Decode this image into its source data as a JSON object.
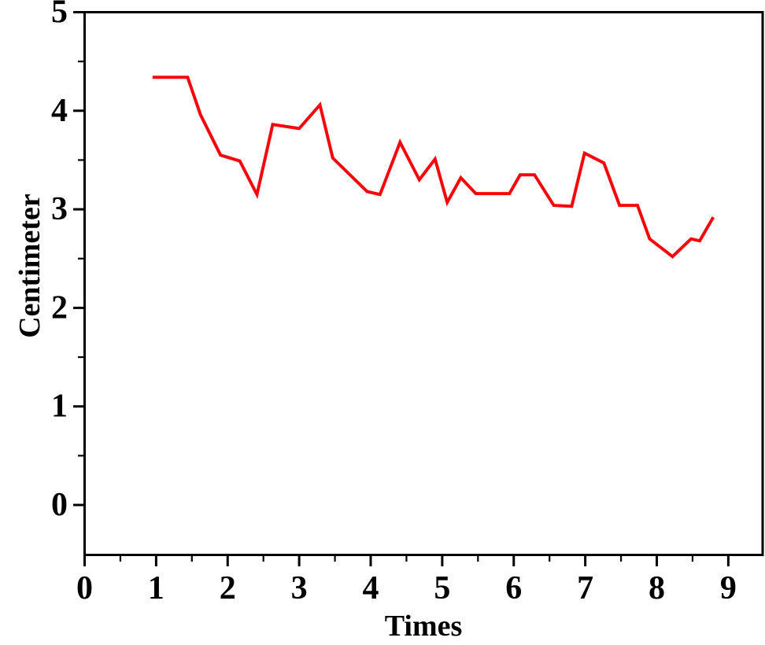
{
  "chart": {
    "background_color": "#ffffff",
    "axis_color": "#000000",
    "text_color": "#000000"
  },
  "chart_data": {
    "type": "line",
    "title": "",
    "xlabel": "Times",
    "ylabel": "Centimeter",
    "xlim": [
      0,
      9.48
    ],
    "ylim": [
      -0.51,
      5.0
    ],
    "grid": false,
    "legend": "none",
    "x_major_ticks": [
      0,
      1,
      2,
      3,
      4,
      5,
      6,
      7,
      8,
      9
    ],
    "x_minor_ticks": [
      0.5,
      1.5,
      2.5,
      3.5,
      4.5,
      5.5,
      6.5,
      7.5,
      8.5
    ],
    "y_major_ticks": [
      0,
      1,
      2,
      3,
      4,
      5
    ],
    "y_minor_ticks": [
      0.5,
      1.5,
      2.5,
      3.5,
      4.5
    ],
    "series": [
      {
        "name": "Centimeter",
        "color": "#f5080c",
        "line_width": 4,
        "points": [
          [
            0.95,
            4.34
          ],
          [
            1.44,
            4.34
          ],
          [
            1.62,
            3.96
          ],
          [
            1.9,
            3.55
          ],
          [
            2.17,
            3.49
          ],
          [
            2.41,
            3.15
          ],
          [
            2.63,
            3.86
          ],
          [
            3.0,
            3.82
          ],
          [
            3.29,
            4.06
          ],
          [
            3.47,
            3.52
          ],
          [
            3.95,
            3.18
          ],
          [
            4.13,
            3.15
          ],
          [
            4.41,
            3.68
          ],
          [
            4.68,
            3.3
          ],
          [
            4.9,
            3.51
          ],
          [
            5.07,
            3.07
          ],
          [
            5.26,
            3.32
          ],
          [
            5.47,
            3.16
          ],
          [
            5.94,
            3.16
          ],
          [
            6.09,
            3.35
          ],
          [
            6.29,
            3.35
          ],
          [
            6.56,
            3.04
          ],
          [
            6.81,
            3.03
          ],
          [
            6.99,
            3.57
          ],
          [
            7.26,
            3.47
          ],
          [
            7.48,
            3.04
          ],
          [
            7.73,
            3.04
          ],
          [
            7.9,
            2.7
          ],
          [
            8.22,
            2.52
          ],
          [
            8.48,
            2.7
          ],
          [
            8.6,
            2.68
          ],
          [
            8.79,
            2.92
          ]
        ]
      }
    ]
  }
}
